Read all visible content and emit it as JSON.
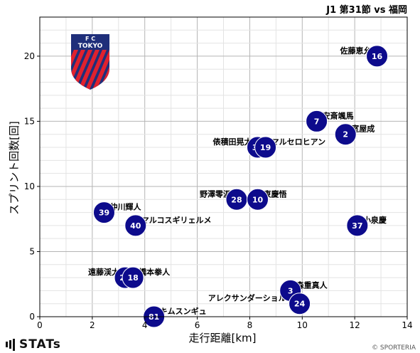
{
  "chart_data": {
    "type": "scatter",
    "title": "J1 第31節 vs 福岡",
    "xlabel": "走行距離[km]",
    "ylabel": "スプリント回数[回]",
    "xlim": [
      0,
      14
    ],
    "ylim": [
      0,
      23
    ],
    "xticks": [
      0,
      2,
      4,
      6,
      8,
      10,
      12,
      14
    ],
    "yticks": [
      0,
      5,
      10,
      15,
      20
    ],
    "grid": true,
    "points": [
      {
        "number": "16",
        "name": "佐藤恵允",
        "x": 12.85,
        "y": 20
      },
      {
        "number": "7",
        "name": "安斎颯馬",
        "x": 10.55,
        "y": 15
      },
      {
        "number": "2",
        "name": "室屋成",
        "x": 11.65,
        "y": 14
      },
      {
        "number": "33",
        "name": "俵積田晃太",
        "x": 8.3,
        "y": 13
      },
      {
        "number": "19",
        "name": "マルセロヒアン",
        "x": 8.6,
        "y": 13
      },
      {
        "number": "28",
        "name": "野澤零温",
        "x": 7.5,
        "y": 9
      },
      {
        "number": "10",
        "name": "東慶悟",
        "x": 8.3,
        "y": 9
      },
      {
        "number": "39",
        "name": "仲川輝人",
        "x": 2.45,
        "y": 8
      },
      {
        "number": "40",
        "name": "マルコスギリェルメ",
        "x": 3.65,
        "y": 7
      },
      {
        "number": "37",
        "name": "小泉慶",
        "x": 12.1,
        "y": 7
      },
      {
        "number": "22",
        "name": "遠藤渓太",
        "x": 3.25,
        "y": 3
      },
      {
        "number": "18",
        "name": "橋本拳人",
        "x": 3.55,
        "y": 3
      },
      {
        "number": "3",
        "name": "森重真人",
        "x": 9.55,
        "y": 2
      },
      {
        "number": "24",
        "name": "アレクサンダーショルツ",
        "x": 9.9,
        "y": 1
      },
      {
        "number": "81",
        "name": "キムスンギュ",
        "x": 4.35,
        "y": 0
      }
    ]
  },
  "emblem": {
    "text_top": "F      C",
    "text_mid": "TOKYO"
  },
  "footer": {
    "brand": "STATs",
    "copyright": "© SPORTERIA"
  },
  "colors": {
    "marker": "#0d0b8c",
    "marker_text": "#ffffff",
    "grid": "#c8c8c8",
    "emblem_blue": "#1f2f7a",
    "emblem_red": "#e0212e"
  }
}
